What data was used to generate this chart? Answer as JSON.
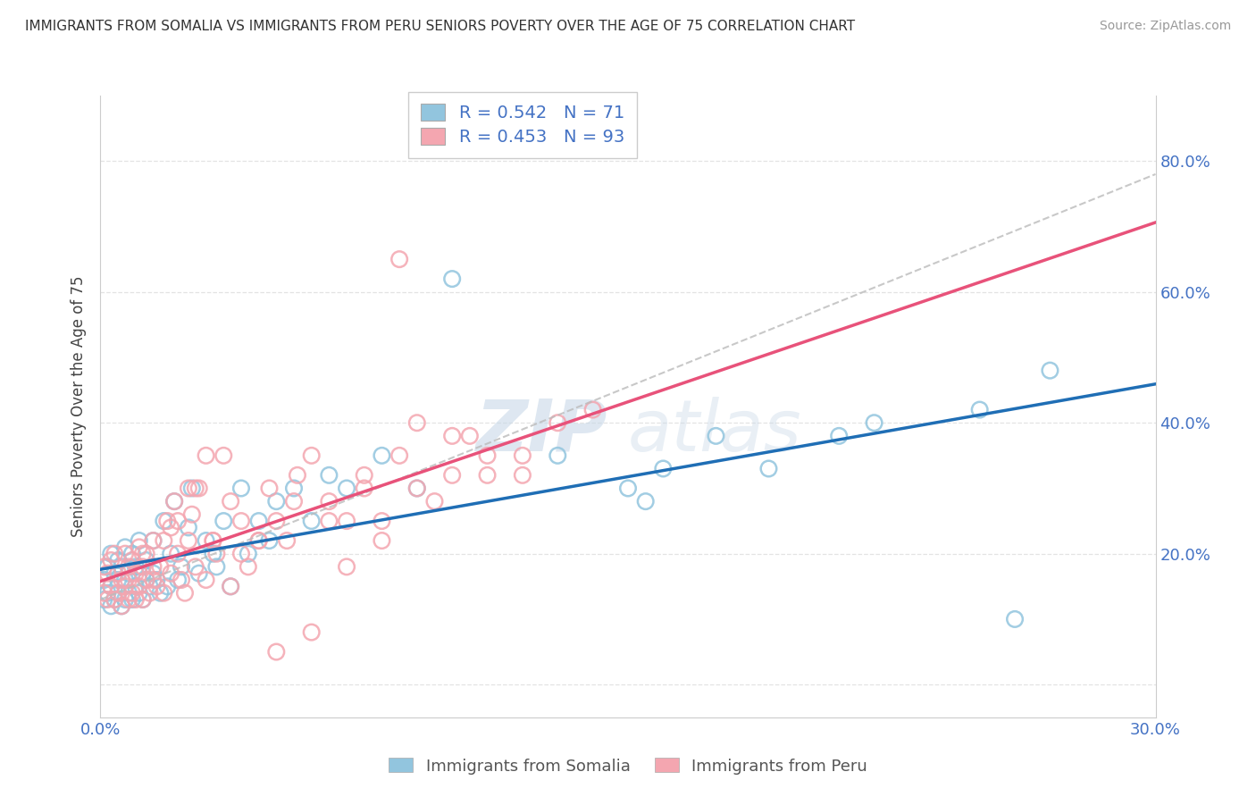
{
  "title": "IMMIGRANTS FROM SOMALIA VS IMMIGRANTS FROM PERU SENIORS POVERTY OVER THE AGE OF 75 CORRELATION CHART",
  "source": "Source: ZipAtlas.com",
  "ylabel": "Seniors Poverty Over the Age of 75",
  "xlim": [
    0.0,
    0.3
  ],
  "ylim": [
    -0.05,
    0.9
  ],
  "somalia_color": "#92c5de",
  "peru_color": "#f4a6b0",
  "somalia_R": 0.542,
  "somalia_N": 71,
  "peru_R": 0.453,
  "peru_N": 93,
  "somalia_line_color": "#1f6eb5",
  "peru_line_color": "#e8527a",
  "dashed_line_color": "#cccccc",
  "watermark_color": "#c8d8e8",
  "somalia_x": [
    0.001,
    0.001,
    0.002,
    0.002,
    0.003,
    0.003,
    0.003,
    0.004,
    0.004,
    0.005,
    0.005,
    0.005,
    0.006,
    0.006,
    0.007,
    0.007,
    0.007,
    0.008,
    0.008,
    0.009,
    0.009,
    0.01,
    0.01,
    0.011,
    0.011,
    0.012,
    0.012,
    0.013,
    0.013,
    0.014,
    0.015,
    0.015,
    0.016,
    0.017,
    0.018,
    0.019,
    0.02,
    0.021,
    0.022,
    0.023,
    0.025,
    0.026,
    0.028,
    0.03,
    0.032,
    0.033,
    0.035,
    0.037,
    0.04,
    0.042,
    0.045,
    0.048,
    0.05,
    0.055,
    0.06,
    0.065,
    0.07,
    0.08,
    0.09,
    0.1,
    0.13,
    0.15,
    0.155,
    0.16,
    0.175,
    0.19,
    0.21,
    0.22,
    0.25,
    0.26,
    0.27
  ],
  "somalia_y": [
    0.13,
    0.16,
    0.14,
    0.18,
    0.12,
    0.15,
    0.2,
    0.13,
    0.17,
    0.14,
    0.16,
    0.19,
    0.12,
    0.18,
    0.13,
    0.16,
    0.21,
    0.14,
    0.17,
    0.13,
    0.2,
    0.15,
    0.18,
    0.14,
    0.22,
    0.13,
    0.17,
    0.16,
    0.19,
    0.15,
    0.17,
    0.22,
    0.16,
    0.14,
    0.25,
    0.15,
    0.2,
    0.28,
    0.16,
    0.18,
    0.24,
    0.3,
    0.17,
    0.22,
    0.2,
    0.18,
    0.25,
    0.15,
    0.3,
    0.2,
    0.25,
    0.22,
    0.28,
    0.3,
    0.25,
    0.32,
    0.3,
    0.35,
    0.3,
    0.62,
    0.35,
    0.3,
    0.28,
    0.33,
    0.38,
    0.33,
    0.38,
    0.4,
    0.42,
    0.1,
    0.48
  ],
  "peru_x": [
    0.001,
    0.001,
    0.002,
    0.002,
    0.003,
    0.003,
    0.004,
    0.004,
    0.005,
    0.005,
    0.006,
    0.006,
    0.007,
    0.007,
    0.008,
    0.008,
    0.009,
    0.009,
    0.01,
    0.01,
    0.011,
    0.011,
    0.012,
    0.012,
    0.013,
    0.013,
    0.014,
    0.015,
    0.015,
    0.016,
    0.017,
    0.018,
    0.019,
    0.02,
    0.021,
    0.022,
    0.023,
    0.024,
    0.025,
    0.026,
    0.027,
    0.028,
    0.03,
    0.032,
    0.033,
    0.035,
    0.037,
    0.04,
    0.042,
    0.045,
    0.048,
    0.05,
    0.053,
    0.056,
    0.06,
    0.065,
    0.07,
    0.075,
    0.08,
    0.085,
    0.09,
    0.095,
    0.1,
    0.105,
    0.11,
    0.12,
    0.025,
    0.03,
    0.04,
    0.045,
    0.05,
    0.055,
    0.06,
    0.065,
    0.07,
    0.075,
    0.08,
    0.085,
    0.09,
    0.1,
    0.11,
    0.12,
    0.13,
    0.14,
    0.018,
    0.022,
    0.027,
    0.032,
    0.037,
    0.008,
    0.012,
    0.015,
    0.02
  ],
  "peru_y": [
    0.14,
    0.18,
    0.13,
    0.17,
    0.15,
    0.19,
    0.13,
    0.2,
    0.14,
    0.17,
    0.12,
    0.16,
    0.15,
    0.2,
    0.13,
    0.18,
    0.14,
    0.19,
    0.13,
    0.17,
    0.15,
    0.21,
    0.13,
    0.18,
    0.16,
    0.2,
    0.14,
    0.16,
    0.22,
    0.15,
    0.18,
    0.14,
    0.25,
    0.17,
    0.28,
    0.2,
    0.16,
    0.14,
    0.22,
    0.26,
    0.18,
    0.3,
    0.16,
    0.22,
    0.2,
    0.35,
    0.15,
    0.25,
    0.18,
    0.22,
    0.3,
    0.25,
    0.22,
    0.32,
    0.35,
    0.28,
    0.25,
    0.3,
    0.22,
    0.65,
    0.4,
    0.28,
    0.32,
    0.38,
    0.35,
    0.32,
    0.3,
    0.35,
    0.2,
    0.22,
    0.05,
    0.28,
    0.08,
    0.25,
    0.18,
    0.32,
    0.25,
    0.35,
    0.3,
    0.38,
    0.32,
    0.35,
    0.4,
    0.42,
    0.22,
    0.25,
    0.3,
    0.22,
    0.28,
    0.16,
    0.2,
    0.18,
    0.24
  ]
}
